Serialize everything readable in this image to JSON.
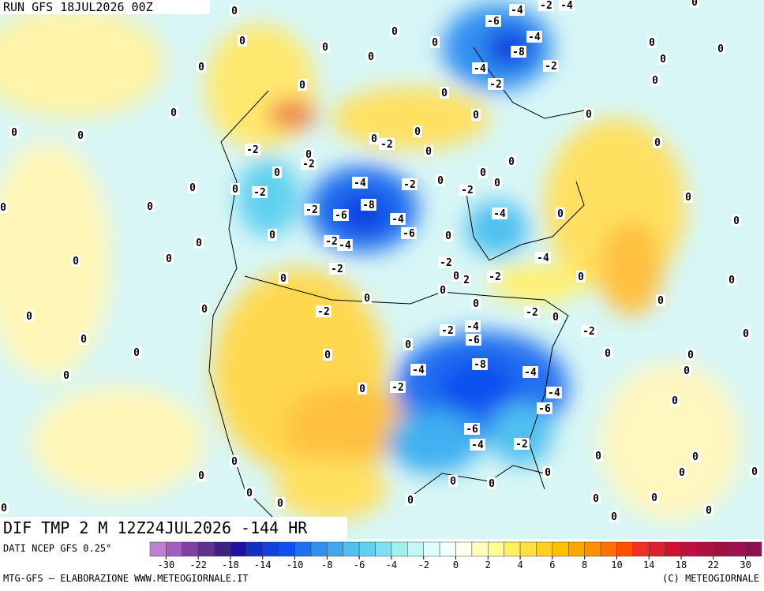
{
  "header": {
    "run": "RUN GFS 18JUL2026 00Z",
    "product": "DIF TMP 2 M 12Z24JUL2026 -144 HR"
  },
  "footer": {
    "source": "DATI NCEP GFS 0.25°",
    "credit": "MTG-GFS — ELABORAZIONE WWW.METEOGIORNALE.IT",
    "copyright": "(C) METEOGIORNALE"
  },
  "colorbar": {
    "colors": [
      "#c080d0",
      "#a060c0",
      "#8040a0",
      "#603090",
      "#402080",
      "#2010a0",
      "#1030c0",
      "#1040e0",
      "#1050f0",
      "#2070f0",
      "#3090f0",
      "#40a8f0",
      "#50c0f0",
      "#60d0f0",
      "#80e0f0",
      "#a0f0f0",
      "#c0f8f8",
      "#e0ffff",
      "#f0ffff",
      "#fffff0",
      "#ffffc0",
      "#ffff90",
      "#fff060",
      "#ffe040",
      "#ffd020",
      "#ffc000",
      "#ffa800",
      "#ff9000",
      "#ff7000",
      "#ff5000",
      "#f03020",
      "#e02030",
      "#d01030",
      "#c01040",
      "#b01040",
      "#a01040",
      "#a01050",
      "#901050"
    ],
    "ticks": [
      -30,
      -22,
      -18,
      -14,
      -10,
      -8,
      -6,
      -4,
      -2,
      0,
      2,
      4,
      6,
      8,
      10,
      14,
      18,
      22,
      30
    ]
  },
  "contour_labels": [
    0,
    -6,
    -4,
    -2,
    -4,
    0,
    0,
    0,
    0,
    0,
    -4,
    -8,
    -2,
    -4,
    -2,
    0,
    0,
    0,
    0,
    0,
    0,
    0,
    0,
    0,
    0,
    0,
    0,
    0,
    0,
    -2,
    0,
    0,
    -2,
    0,
    -2,
    0,
    0,
    0,
    -4,
    -2,
    0,
    0,
    0,
    0,
    0,
    -2,
    -2,
    0,
    0,
    0,
    -2,
    -8,
    -6,
    -4,
    -4,
    0,
    0,
    -6,
    0,
    0,
    0,
    -2,
    -4,
    -4,
    0,
    0,
    -2,
    -2,
    0,
    2,
    -2,
    0,
    0,
    0,
    0,
    0,
    0,
    0,
    -2,
    -2,
    0,
    0,
    0,
    -4,
    -2,
    -2,
    -6,
    0,
    0,
    0,
    0,
    0,
    0,
    0,
    -8,
    -4,
    -4,
    0,
    0,
    -2,
    0,
    -4,
    -6,
    0,
    -6,
    -2,
    -4,
    0,
    0,
    0,
    0,
    0,
    0,
    0,
    0,
    0,
    0,
    0,
    0,
    0,
    0,
    0,
    0,
    0
  ]
}
